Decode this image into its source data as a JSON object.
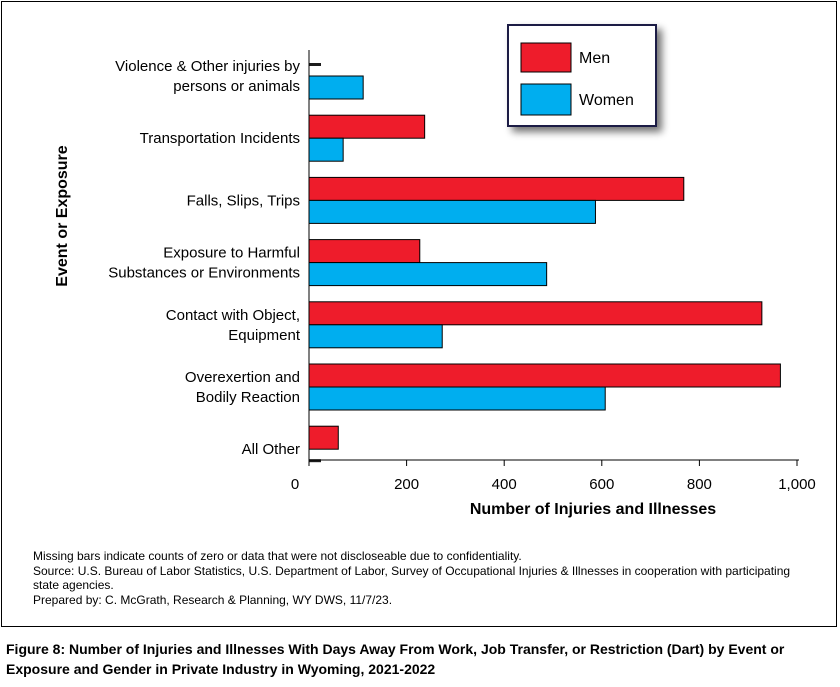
{
  "chart_data": {
    "type": "bar",
    "orientation": "horizontal",
    "categories": [
      [
        "Violence & Other injuries by",
        "persons or animals"
      ],
      [
        "Transportation Incidents"
      ],
      [
        "Falls, Slips, Trips"
      ],
      [
        "Exposure to Harmful",
        "Substances or Environments"
      ],
      [
        "Contact with Object,",
        "Equipment"
      ],
      [
        "Overexertion and",
        "Bodily Reaction"
      ],
      [
        "All Other"
      ]
    ],
    "series": [
      {
        "name": "Men",
        "color": "#ee1c2b",
        "values": [
          null,
          237,
          768,
          227,
          928,
          966,
          60
        ]
      },
      {
        "name": "Women",
        "color": "#00aeef",
        "values": [
          111,
          70,
          587,
          487,
          273,
          607,
          null
        ]
      }
    ],
    "xlabel": "Number of Injuries and Illnesses",
    "ylabel": "Event or Exposure",
    "xlim": [
      0,
      1000
    ],
    "xticks": [
      0,
      200,
      400,
      600,
      800,
      1000
    ],
    "xtick_labels": [
      "0",
      "200",
      "400",
      "600",
      "800",
      "1,000"
    ],
    "grid": false,
    "legend_position": "top-right"
  },
  "notes": [
    "Missing bars indicate counts of zero or data that were not discloseable due to confidentiality.",
    "Source: U.S. Bureau of Labor Statistics, U.S. Department of Labor, Survey of Occupational Injuries & Illnesses in cooperation with participating state agencies.",
    "Prepared by: C. McGrath, Research & Planning, WY DWS, 11/7/23."
  ],
  "caption": "Figure 8: Number of Injuries and Illnesses With Days Away From Work, Job Transfer, or Restriction (Dart) by Event or Exposure and Gender in Private Industry in Wyoming, 2021-2022"
}
